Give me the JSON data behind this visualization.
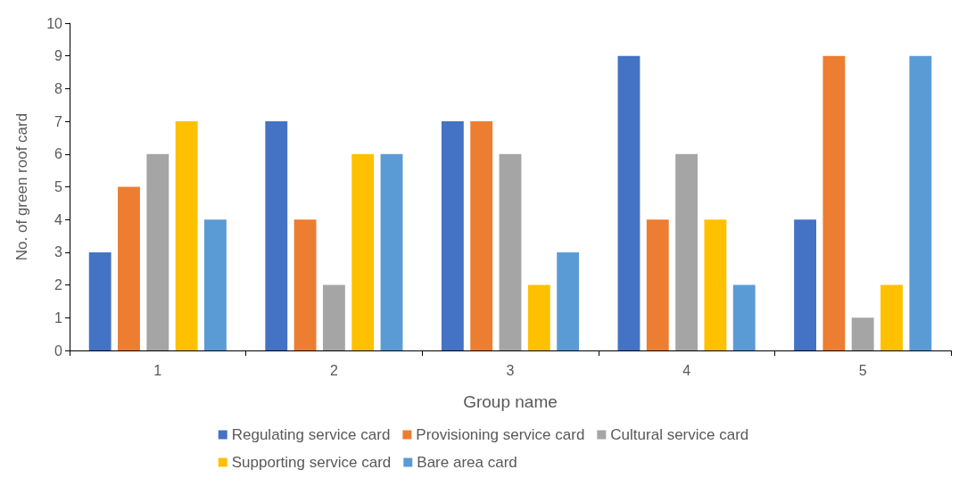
{
  "chart_data": {
    "type": "bar",
    "xlabel": "Group name",
    "ylabel": "No. of green roof card",
    "categories": [
      "1",
      "2",
      "3",
      "4",
      "5"
    ],
    "series": [
      {
        "name": "Regulating service card",
        "color": "#4472c4",
        "values": [
          3,
          7,
          7,
          9,
          4
        ]
      },
      {
        "name": "Provisioning service card",
        "color": "#ed7d31",
        "values": [
          5,
          4,
          7,
          4,
          9
        ]
      },
      {
        "name": "Cultural service card",
        "color": "#a5a5a5",
        "values": [
          6,
          2,
          6,
          6,
          1
        ]
      },
      {
        "name": "Supporting service card",
        "color": "#ffc000",
        "values": [
          7,
          6,
          2,
          4,
          2
        ]
      },
      {
        "name": "Bare area card",
        "color": "#5b9bd5",
        "values": [
          4,
          6,
          3,
          2,
          9
        ]
      }
    ],
    "ylim": [
      0,
      10
    ],
    "yticks": [
      0,
      1,
      2,
      3,
      4,
      5,
      6,
      7,
      8,
      9,
      10
    ],
    "grid": false,
    "legend": "bottom"
  }
}
